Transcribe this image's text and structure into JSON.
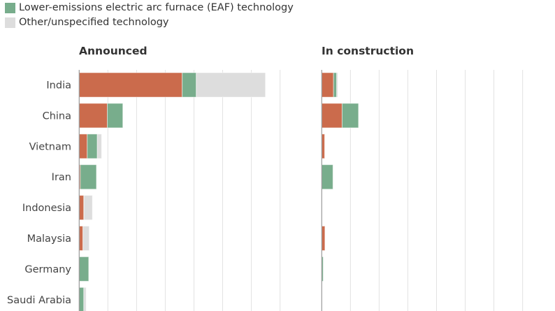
{
  "legend": [
    {
      "label": "Lower-emissions electric arc furnace (EAF) technology",
      "color": "#78ad8c"
    },
    {
      "label": "Other/unspecified technology",
      "color": "#dddddd"
    }
  ],
  "chart_data": [
    {
      "type": "bar",
      "orientation": "horizontal",
      "stacked": true,
      "title": "Announced",
      "categories": [
        "India",
        "China",
        "Vietnam",
        "Iran",
        "Indonesia",
        "Malaysia",
        "Germany",
        "Saudi Arabia"
      ],
      "series": [
        {
          "color": "#cb6b4c",
          "values": [
            3.59,
            0.98,
            0.28,
            0.04,
            0.16,
            0.13,
            0,
            0
          ]
        },
        {
          "name": "Lower-emissions electric arc furnace (EAF) technology",
          "color": "#78ad8c",
          "values": [
            0.49,
            0.54,
            0.35,
            0.56,
            0.01,
            0,
            0.33,
            0.16
          ]
        },
        {
          "name": "Other/unspecified technology",
          "color": "#dddddd",
          "values": [
            2.41,
            0,
            0.15,
            0,
            0.29,
            0.22,
            0,
            0.08
          ]
        }
      ],
      "xlim": [
        0,
        7.5
      ],
      "grid": true,
      "legend_placement": "top-left"
    },
    {
      "type": "bar",
      "orientation": "horizontal",
      "stacked": true,
      "title": "In construction",
      "categories": [
        "India",
        "China",
        "Vietnam",
        "Iran",
        "Indonesia",
        "Malaysia",
        "Germany",
        "Saudi Arabia"
      ],
      "series": [
        {
          "color": "#cb6b4c",
          "values": [
            0.41,
            0.71,
            0.1,
            0,
            0,
            0.11,
            0,
            0
          ]
        },
        {
          "name": "Lower-emissions electric arc furnace (EAF) technology",
          "color": "#78ad8c",
          "values": [
            0.11,
            0.57,
            0,
            0.39,
            0,
            0,
            0.05,
            0
          ]
        },
        {
          "name": "Other/unspecified technology",
          "color": "#dddddd",
          "values": [
            0.04,
            0,
            0,
            0,
            0,
            0,
            0,
            0
          ]
        }
      ],
      "xlim": [
        0,
        7.5
      ],
      "grid": true
    }
  ]
}
